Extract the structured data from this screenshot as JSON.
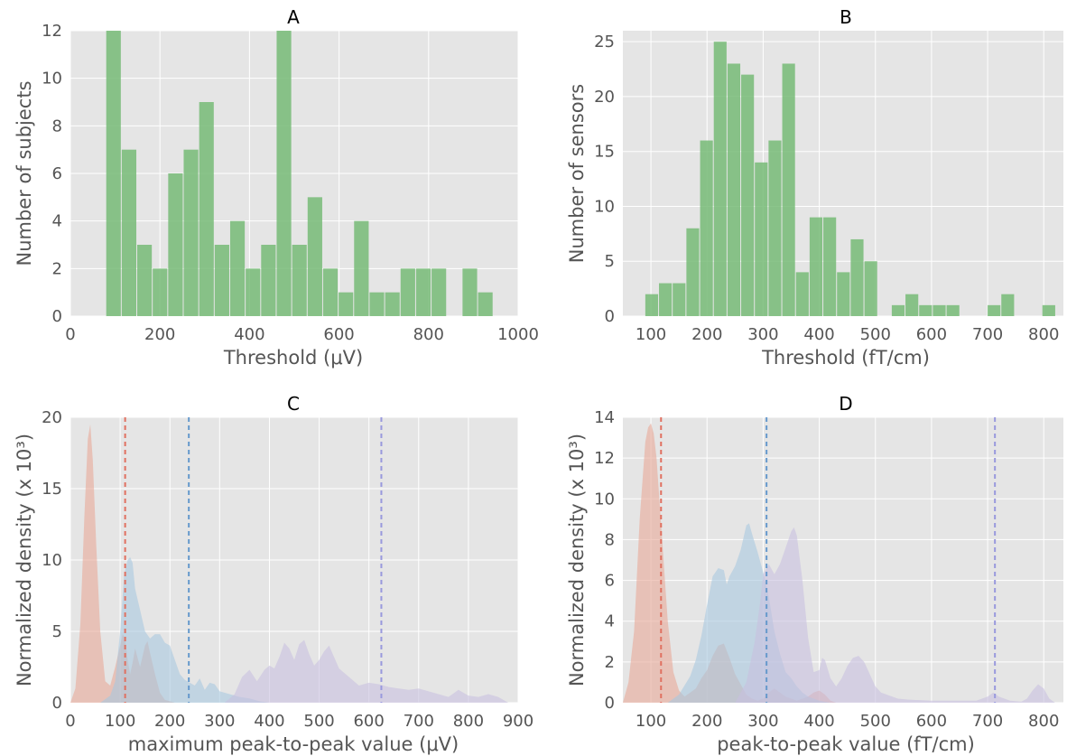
{
  "chart_data": [
    {
      "type": "bar",
      "title": "A",
      "xlabel": "Threshold (μV)",
      "ylabel": "Number of subjects",
      "xlim": [
        0,
        1000
      ],
      "ylim": [
        0,
        12
      ],
      "xticks": [
        0,
        200,
        400,
        600,
        800,
        1000
      ],
      "yticks": [
        0,
        2,
        4,
        6,
        8,
        10,
        12
      ],
      "grid": true,
      "bar_color": "#77bb77",
      "bin_edges": [
        80,
        114.6,
        149.2,
        183.8,
        218.4,
        253,
        287.6,
        322.2,
        356.8,
        391.4,
        426,
        460.6,
        495.2,
        529.8,
        564.4,
        599,
        633.6,
        668.2,
        702.8,
        737.4,
        772,
        806.6,
        841.2,
        875.8,
        910.4,
        945,
        979.6
      ],
      "values": [
        12,
        7,
        3,
        2,
        6,
        7,
        9,
        3,
        4,
        2,
        3,
        12,
        3,
        5,
        2,
        1,
        4,
        1,
        1,
        2,
        2,
        2,
        0,
        2,
        1,
        0
      ]
    },
    {
      "type": "bar",
      "title": "B",
      "xlabel": "Threshold (fT/cm)",
      "ylabel": "Number of sensors",
      "xlim": [
        50,
        835
      ],
      "ylim": [
        0,
        26
      ],
      "xticks": [
        100,
        200,
        300,
        400,
        500,
        600,
        700,
        800
      ],
      "yticks": [
        0,
        5,
        10,
        15,
        20,
        25
      ],
      "grid": true,
      "bar_color": "#77bb77",
      "bin_edges": [
        90,
        114.4,
        138.8,
        163.2,
        187.6,
        212,
        236.4,
        260.8,
        285.2,
        309.6,
        334,
        358.4,
        382.8,
        407.2,
        431.6,
        456,
        480.4,
        504.8,
        529.2,
        553.6,
        578,
        602.4,
        626.8,
        651.2,
        675.6,
        700,
        724.4,
        748.8,
        773.2,
        797.6,
        822
      ],
      "values": [
        2,
        3,
        3,
        8,
        16,
        25,
        23,
        22,
        14,
        16,
        23,
        4,
        9,
        9,
        4,
        7,
        5,
        0,
        1,
        2,
        1,
        1,
        1,
        0,
        0,
        1,
        2,
        0,
        0,
        1
      ]
    },
    {
      "type": "area",
      "title": "C",
      "xlabel": "maximum peak-to-peak value (μV)",
      "ylabel": "Normalized density (x 10³)",
      "xlim": [
        0,
        900
      ],
      "ylim": [
        0,
        20
      ],
      "xticks": [
        0,
        100,
        200,
        300,
        400,
        500,
        600,
        700,
        800,
        900
      ],
      "yticks": [
        0,
        5,
        10,
        15,
        20
      ],
      "grid": true,
      "series": [
        {
          "color": "#e8a898",
          "x": [
            0,
            10,
            20,
            28,
            35,
            40,
            45,
            52,
            60,
            70,
            80,
            90,
            100,
            105,
            110,
            115,
            120,
            125,
            130,
            140,
            150,
            155,
            160,
            170,
            180,
            190,
            200,
            210
          ],
          "y": [
            0,
            1,
            5.5,
            13,
            18.5,
            19.5,
            17,
            11,
            5,
            1.5,
            1.2,
            2.5,
            4,
            4.8,
            4.5,
            3,
            2,
            2.8,
            3.8,
            2.5,
            4,
            4.3,
            3.5,
            2,
            0.7,
            0.2,
            0.1,
            0
          ]
        },
        {
          "color": "#a8c8e0",
          "x": [
            60,
            80,
            90,
            100,
            108,
            115,
            120,
            125,
            130,
            140,
            150,
            160,
            170,
            180,
            190,
            200,
            210,
            220,
            230,
            240,
            250,
            260,
            270,
            280,
            290,
            300,
            320,
            340,
            360,
            380,
            400
          ],
          "y": [
            0,
            0.5,
            1.5,
            5,
            9,
            10,
            10.2,
            9.8,
            8,
            6.5,
            5,
            4.5,
            4.8,
            4.8,
            4.2,
            4,
            3,
            2,
            1.6,
            1.4,
            1.2,
            1.7,
            0.9,
            1.4,
            1.3,
            0.8,
            0.6,
            0.4,
            0.3,
            0.1,
            0
          ]
        },
        {
          "color": "#c8c0e0",
          "x": [
            310,
            330,
            345,
            360,
            375,
            390,
            400,
            410,
            420,
            430,
            440,
            450,
            460,
            470,
            480,
            490,
            500,
            510,
            520,
            530,
            540,
            560,
            580,
            600,
            620,
            640,
            660,
            680,
            700,
            720,
            740,
            760,
            780,
            800,
            820,
            840,
            860,
            880
          ],
          "y": [
            0,
            0.6,
            1.8,
            2.3,
            1.5,
            2.3,
            2.6,
            2.4,
            3.2,
            4.2,
            3.8,
            3.0,
            4.1,
            4.4,
            3.4,
            2.6,
            3.0,
            3.6,
            4.0,
            3.2,
            2.4,
            1.8,
            1.2,
            1.4,
            1.3,
            1.1,
            1.0,
            0.9,
            1.0,
            0.8,
            0.6,
            0.4,
            0.9,
            0.5,
            0.4,
            0.6,
            0.4,
            0
          ]
        }
      ],
      "vlines": [
        {
          "x": 110,
          "color": "#e07060"
        },
        {
          "x": 238,
          "color": "#6699cc"
        },
        {
          "x": 625,
          "color": "#9999dd"
        }
      ]
    },
    {
      "type": "area",
      "title": "D",
      "xlabel": "peak-to-peak value (fT/cm)",
      "ylabel": "Normalized density (x 10³)",
      "xlim": [
        50,
        835
      ],
      "ylim": [
        0,
        14
      ],
      "xticks": [
        100,
        200,
        300,
        400,
        500,
        600,
        700,
        800
      ],
      "yticks": [
        0,
        2,
        4,
        6,
        8,
        10,
        12,
        14
      ],
      "grid": true,
      "series": [
        {
          "color": "#e8a898",
          "x": [
            50,
            60,
            70,
            80,
            90,
            95,
            100,
            105,
            110,
            120,
            130,
            140,
            150,
            160,
            170,
            180,
            190,
            200,
            210,
            220,
            230,
            240,
            250,
            260,
            270,
            280,
            290,
            300,
            310,
            320,
            330,
            340,
            350,
            360,
            370,
            380,
            390,
            400,
            410,
            420,
            430
          ],
          "y": [
            0,
            1,
            3.5,
            9,
            12.8,
            13.5,
            13.7,
            13.2,
            12,
            8,
            4,
            1.5,
            0.6,
            0.3,
            0.5,
            0.7,
            1.2,
            1.6,
            2.3,
            2.8,
            2.9,
            2.2,
            1.4,
            0.9,
            0.4,
            0.2,
            0.1,
            0.2,
            0.5,
            0.7,
            0.5,
            0.3,
            0.2,
            0.1,
            0.2,
            0.3,
            0.5,
            0.6,
            0.4,
            0.1,
            0
          ]
        },
        {
          "color": "#a8c8e0",
          "x": [
            130,
            150,
            170,
            180,
            190,
            200,
            210,
            220,
            230,
            235,
            240,
            250,
            260,
            270,
            275,
            280,
            290,
            300,
            310,
            320,
            330,
            340,
            350,
            360,
            370,
            380,
            400,
            420
          ],
          "y": [
            0,
            0.4,
            1.3,
            2.1,
            3.3,
            4.8,
            6.2,
            6.6,
            6.5,
            5.8,
            6.2,
            6.7,
            7.5,
            8.7,
            8.8,
            8.3,
            7.4,
            6.4,
            5.2,
            3.5,
            2.4,
            1.5,
            1.2,
            0.8,
            0.5,
            0.3,
            0.1,
            0
          ]
        },
        {
          "color": "#c8c0e0",
          "x": [
            250,
            270,
            285,
            295,
            300,
            310,
            320,
            330,
            340,
            350,
            355,
            360,
            370,
            380,
            390,
            400,
            405,
            410,
            420,
            430,
            440,
            450,
            460,
            470,
            480,
            490,
            500,
            510,
            520,
            540,
            560,
            600,
            650,
            680,
            700,
            710,
            720,
            740,
            760,
            770,
            780,
            790,
            800,
            810,
            820
          ],
          "y": [
            0,
            1,
            3,
            5,
            6.3,
            6.8,
            6.3,
            6.8,
            7.6,
            8.4,
            8.6,
            8.2,
            6,
            3.2,
            1.5,
            1.6,
            2.2,
            2.1,
            1.2,
            0.8,
            1.2,
            1.8,
            2.2,
            2.3,
            2.0,
            1.4,
            0.8,
            0.5,
            0.4,
            0.2,
            0.15,
            0.1,
            0.1,
            0.1,
            0.3,
            0.5,
            0.3,
            0.1,
            0.05,
            0.2,
            0.6,
            0.9,
            0.7,
            0.2,
            0
          ]
        }
      ],
      "vlines": [
        {
          "x": 118,
          "color": "#e07060"
        },
        {
          "x": 306,
          "color": "#6699cc"
        },
        {
          "x": 713,
          "color": "#9999dd"
        }
      ]
    }
  ]
}
